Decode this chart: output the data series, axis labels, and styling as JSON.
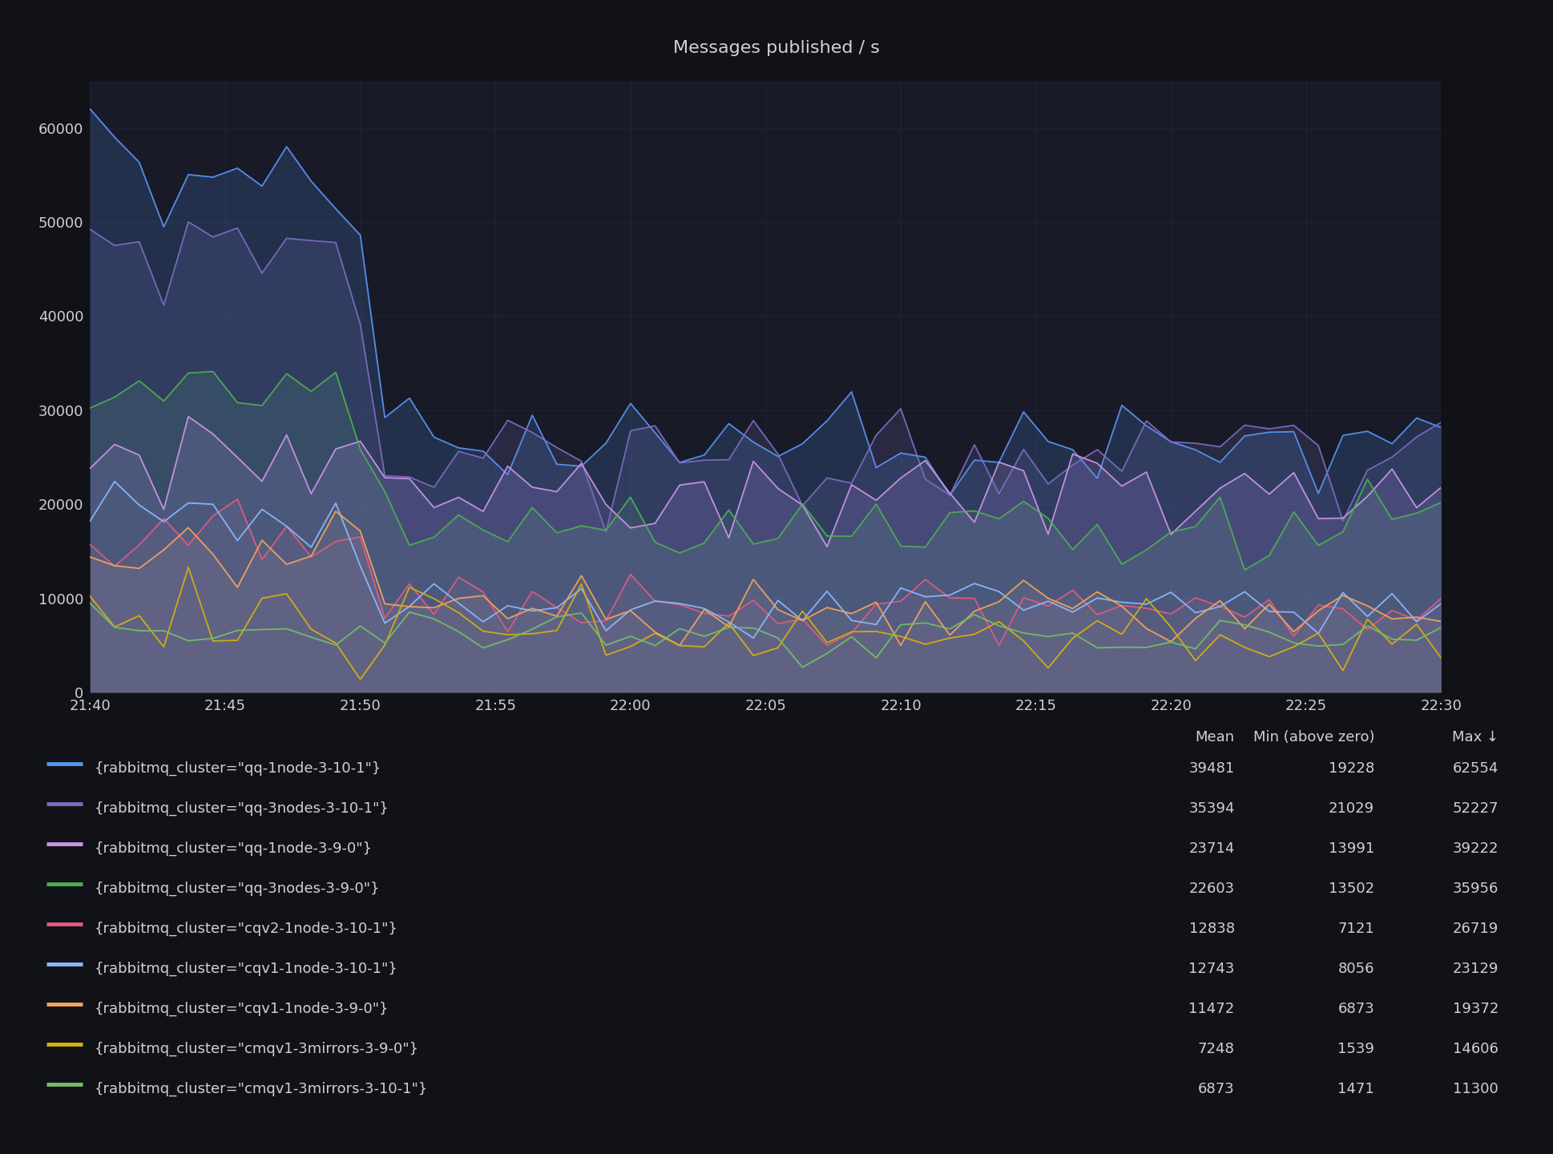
{
  "title": "Messages published / s",
  "background_color": "#111217",
  "plot_bg_color": "#181b27",
  "grid_color": "#23263a",
  "text_color": "#d0d1d5",
  "ylim": [
    0,
    65000
  ],
  "yticks": [
    0,
    10000,
    20000,
    30000,
    40000,
    50000,
    60000
  ],
  "series": [
    {
      "label": "{rabbitmq_cluster=\"qq-1node-3-10-1\"}",
      "color": "#5794f2",
      "mean": 39481,
      "min_val": 19228,
      "max_val": 62554,
      "fill": true,
      "fill_alpha": 0.18,
      "seg1_mean": 56000,
      "seg1_std": 3500,
      "seg2_mean": 35000,
      "seg2_std": 3500,
      "seg3_mean": 27000,
      "seg3_std": 2500
    },
    {
      "label": "{rabbitmq_cluster=\"qq-3nodes-3-10-1\"}",
      "color": "#7b6cbf",
      "mean": 35394,
      "min_val": 21029,
      "max_val": 52227,
      "fill": true,
      "fill_alpha": 0.18,
      "seg1_mean": 47000,
      "seg1_std": 2500,
      "seg2_mean": 34000,
      "seg2_std": 3000,
      "seg3_mean": 25000,
      "seg3_std": 2500
    },
    {
      "label": "{rabbitmq_cluster=\"qq-1node-3-9-0\"}",
      "color": "#ca95e5",
      "mean": 23714,
      "min_val": 13991,
      "max_val": 39222,
      "fill": true,
      "fill_alpha": 0.18,
      "seg1_mean": 24000,
      "seg1_std": 3500,
      "seg2_mean": 22000,
      "seg2_std": 2500,
      "seg3_mean": 20000,
      "seg3_std": 2000
    },
    {
      "label": "{rabbitmq_cluster=\"qq-3nodes-3-9-0\"}",
      "color": "#4cae52",
      "mean": 22603,
      "min_val": 13502,
      "max_val": 35956,
      "fill": true,
      "fill_alpha": 0.18,
      "seg1_mean": 33000,
      "seg1_std": 1500,
      "seg2_mean": 18000,
      "seg2_std": 2000,
      "seg3_mean": 17000,
      "seg3_std": 2000
    },
    {
      "label": "{rabbitmq_cluster=\"cqv2-1node-3-10-1\"}",
      "color": "#e05b7f",
      "mean": 12838,
      "min_val": 7121,
      "max_val": 26719,
      "fill": true,
      "fill_alpha": 0.12,
      "seg1_mean": 17000,
      "seg1_std": 3000,
      "seg2_mean": 9000,
      "seg2_std": 2000,
      "seg3_mean": 9500,
      "seg3_std": 1500
    },
    {
      "label": "{rabbitmq_cluster=\"cqv1-1node-3-10-1\"}",
      "color": "#8ab8ff",
      "mean": 12743,
      "min_val": 8056,
      "max_val": 23129,
      "fill": false,
      "fill_alpha": 0.0,
      "seg1_mean": 18000,
      "seg1_std": 2000,
      "seg2_mean": 9000,
      "seg2_std": 1500,
      "seg3_mean": 9500,
      "seg3_std": 1500
    },
    {
      "label": "{rabbitmq_cluster=\"cqv1-1node-3-9-0\"}",
      "color": "#f2a45c",
      "mean": 11472,
      "min_val": 6873,
      "max_val": 19372,
      "fill": true,
      "fill_alpha": 0.12,
      "seg1_mean": 15000,
      "seg1_std": 2500,
      "seg2_mean": 9000,
      "seg2_std": 1500,
      "seg3_mean": 9000,
      "seg3_std": 1500
    },
    {
      "label": "{rabbitmq_cluster=\"cmqv1-3mirrors-3-9-0\"}",
      "color": "#d4b012",
      "mean": 7248,
      "min_val": 1539,
      "max_val": 14606,
      "fill": false,
      "fill_alpha": 0.0,
      "seg1_mean": 9000,
      "seg1_std": 2500,
      "seg2_mean": 7000,
      "seg2_std": 2000,
      "seg3_mean": 6500,
      "seg3_std": 2000
    },
    {
      "label": "{rabbitmq_cluster=\"cmqv1-3mirrors-3-10-1\"}",
      "color": "#73bf69",
      "mean": 6873,
      "min_val": 1471,
      "max_val": 11300,
      "fill": false,
      "fill_alpha": 0.0,
      "seg1_mean": 7000,
      "seg1_std": 1500,
      "seg2_mean": 6500,
      "seg2_std": 1500,
      "seg3_mean": 6000,
      "seg3_std": 1500
    }
  ],
  "legend_table": {
    "headers": [
      "Mean",
      "Min (above zero)",
      "Max ↓"
    ],
    "rows": [
      [
        39481,
        19228,
        62554
      ],
      [
        35394,
        21029,
        52227
      ],
      [
        23714,
        13991,
        39222
      ],
      [
        22603,
        13502,
        35956
      ],
      [
        12838,
        7121,
        26719
      ],
      [
        12743,
        8056,
        23129
      ],
      [
        11472,
        6873,
        19372
      ],
      [
        7248,
        1539,
        14606
      ],
      [
        6873,
        1471,
        11300
      ]
    ]
  },
  "xtick_labels": [
    "21:40",
    "21:45",
    "21:50",
    "21:55",
    "22:00",
    "22:05",
    "22:10",
    "22:15",
    "22:20",
    "22:25",
    "22:30"
  ],
  "xtick_positions": [
    0,
    5,
    10,
    15,
    20,
    25,
    30,
    35,
    40,
    45,
    50
  ],
  "n_points": 56,
  "transition1": 10,
  "transition2": 12
}
